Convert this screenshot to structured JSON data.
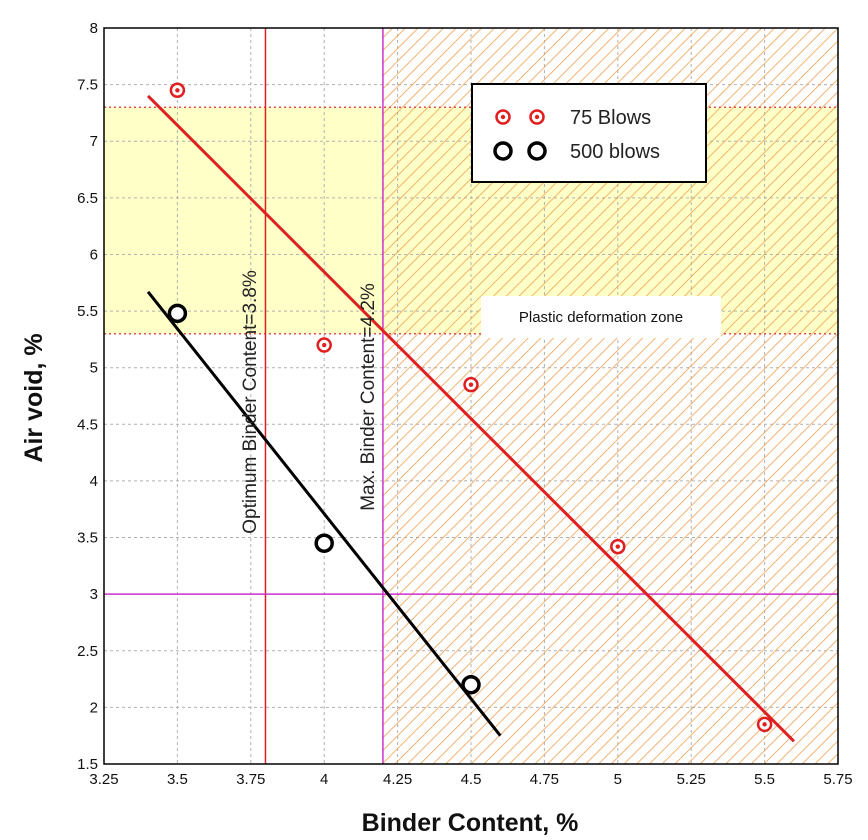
{
  "chart_data": {
    "type": "scatter",
    "title": "",
    "xlabel": "Binder Content, %",
    "ylabel": "Air void, %",
    "xlim": [
      3.25,
      5.75
    ],
    "ylim": [
      1.5,
      8
    ],
    "x_ticks": [
      "3.25",
      "3.5",
      "3.75",
      "4",
      "4.25",
      "4.5",
      "4.75",
      "5",
      "5.25",
      "5.5",
      "5.75"
    ],
    "y_ticks": [
      "1.5",
      "2",
      "2.5",
      "3",
      "3.5",
      "4",
      "4.5",
      "5",
      "5.5",
      "6",
      "6.5",
      "7",
      "7.5",
      "8"
    ],
    "grid": true,
    "legend_position": "top-right",
    "series": [
      {
        "name": "75 Blows",
        "color": "#e02020",
        "marker": "dotted-circle",
        "x": [
          3.5,
          4.0,
          4.5,
          5.0,
          5.5
        ],
        "y": [
          7.45,
          5.2,
          4.85,
          3.42,
          1.85
        ],
        "fit_line": {
          "x": [
            3.4,
            5.6
          ],
          "y": [
            7.4,
            1.7
          ]
        }
      },
      {
        "name": "500 blows",
        "color": "#000000",
        "marker": "open-circle",
        "x": [
          3.5,
          4.0,
          4.5
        ],
        "y": [
          5.48,
          3.45,
          2.2
        ],
        "fit_line": {
          "x": [
            3.4,
            4.6
          ],
          "y": [
            5.67,
            1.75
          ]
        }
      }
    ],
    "reference_lines": {
      "vertical": [
        {
          "x": 3.8,
          "color": "#e02020",
          "label": "Optimum Binder Content=3.8%"
        },
        {
          "x": 4.2,
          "color": "#cc33cc",
          "label": "Max. Binder Content=4.2%"
        }
      ],
      "horizontal": [
        {
          "y": 3,
          "color": "#cc33cc"
        }
      ]
    },
    "zones": [
      {
        "type": "band",
        "y_range": [
          5.3,
          7.3
        ],
        "color": "#ffffc8",
        "border": "#e05050"
      },
      {
        "type": "hatched",
        "x_range": [
          4.2,
          5.75
        ],
        "color": "#f0a050",
        "label": "Plastic deformation zone"
      }
    ]
  }
}
